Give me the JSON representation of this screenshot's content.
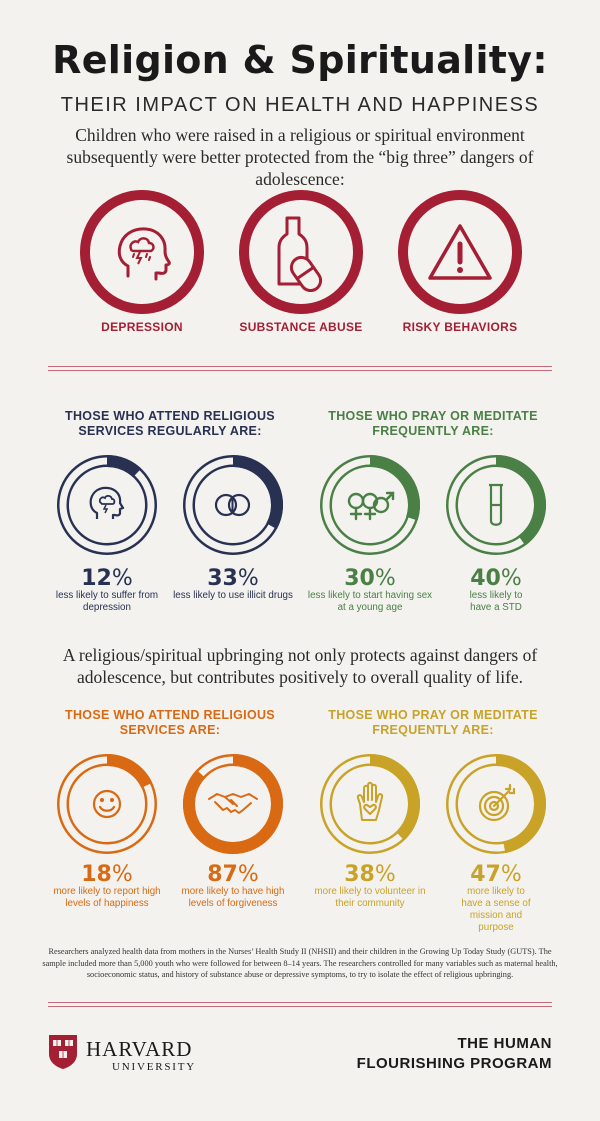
{
  "header": {
    "title": "Religion & Spirituality:",
    "subtitle": "THEIR IMPACT ON HEALTH AND HAPPINESS",
    "intro": "Children who were raised in a religious or spiritual environment subsequently were better protected from the “big three” dangers of adolescence:"
  },
  "dangers": [
    {
      "label": "DEPRESSION",
      "icon": "head-storm-icon"
    },
    {
      "label": "SUBSTANCE ABUSE",
      "icon": "bottle-pill-icon"
    },
    {
      "label": "RISKY BEHAVIORS",
      "icon": "warning-triangle-icon"
    }
  ],
  "colors": {
    "crimson": "#a41e34",
    "navy": "#283152",
    "green": "#4a7f45",
    "orange": "#d96a13",
    "gold": "#c9a228",
    "track": "#f3f2ef"
  },
  "protective": {
    "services_heading": "THOSE WHO ATTEND RELIGIOUS SERVICES REGULARLY ARE:",
    "pray_heading": "THOSE WHO PRAY OR MEDITATE FREQUENTLY ARE:",
    "stats": [
      {
        "value": "12",
        "unit": "%",
        "fraction": 0.12,
        "caption": "less likely to suffer from depression",
        "icon": "head-storm-icon"
      },
      {
        "value": "33",
        "unit": "%",
        "fraction": 0.33,
        "caption": "less likely to use illicit drugs",
        "icon": "pills-icon"
      },
      {
        "value": "30",
        "unit": "%",
        "fraction": 0.3,
        "caption": "less likely to start having sex at a young age",
        "icon": "gender-symbols-icon"
      },
      {
        "value": "40",
        "unit": "%",
        "fraction": 0.4,
        "caption": "less likely to have a STD",
        "icon": "test-tube-icon"
      }
    ]
  },
  "middle_text": "A religious/spiritual upbringing not only protects against dangers of adolescence, but contributes positively to overall quality of life.",
  "positive": {
    "services_heading": "THOSE WHO ATTEND RELIGIOUS SERVICES ARE:",
    "pray_heading": "THOSE WHO PRAY OR MEDITATE FREQUENTLY ARE:",
    "stats": [
      {
        "value": "18",
        "unit": "%",
        "fraction": 0.18,
        "caption": "more likely to report high levels of happiness",
        "icon": "smiley-icon"
      },
      {
        "value": "87",
        "unit": "%",
        "fraction": 0.87,
        "caption": "more likely to have high levels of forgiveness",
        "icon": "handshake-icon"
      },
      {
        "value": "38",
        "unit": "%",
        "fraction": 0.38,
        "caption": "more likely to volunteer in their community",
        "icon": "hand-heart-icon"
      },
      {
        "value": "47",
        "unit": "%",
        "fraction": 0.47,
        "caption": "more likely to have a sense of mission and purpose",
        "icon": "target-icon"
      }
    ]
  },
  "footnote": "Researchers analyzed health data from mothers in the Nurses’ Health Study II (NHSII) and their children in the Growing Up Today Study (GUTS). The sample included more than 5,000 youth who were followed for between 8–14 years. The researchers controlled for many variables such as maternal health, socioeconomic status, and history of substance abuse or depressive symptoms, to try to isolate the effect of religious upbringing.",
  "footer": {
    "university_name": "HARVARD",
    "university_sub": "UNIVERSITY",
    "shield_text": "VE RI TAS",
    "program_line1": "THE HUMAN",
    "program_line2": "FLOURISHING PROGRAM"
  }
}
